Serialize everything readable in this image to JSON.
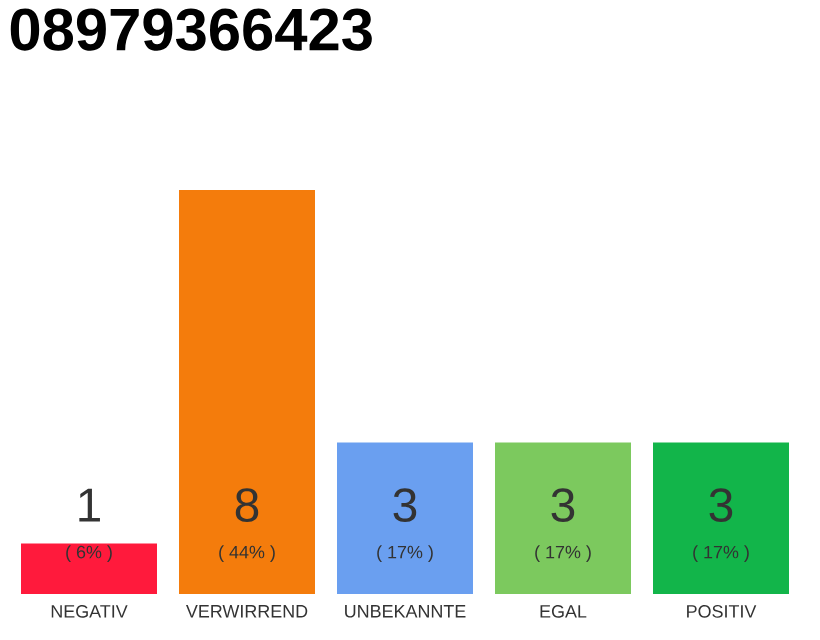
{
  "chart_data": {
    "type": "bar",
    "title": "08979366423",
    "categories": [
      "NEGATIV",
      "VERWIRREND",
      "UNBEKANNTE",
      "EGAL",
      "POSITIV"
    ],
    "values": [
      1,
      8,
      3,
      3,
      3
    ],
    "colors": [
      "#ff1a3c",
      "#f47c0c",
      "#6a9ff0",
      "#7cc95e",
      "#12b54a"
    ],
    "data_labels": true,
    "annotations": [
      "( 6% )",
      "( 44% )",
      "( 17% )",
      "( 17% )",
      "( 17% )"
    ]
  }
}
